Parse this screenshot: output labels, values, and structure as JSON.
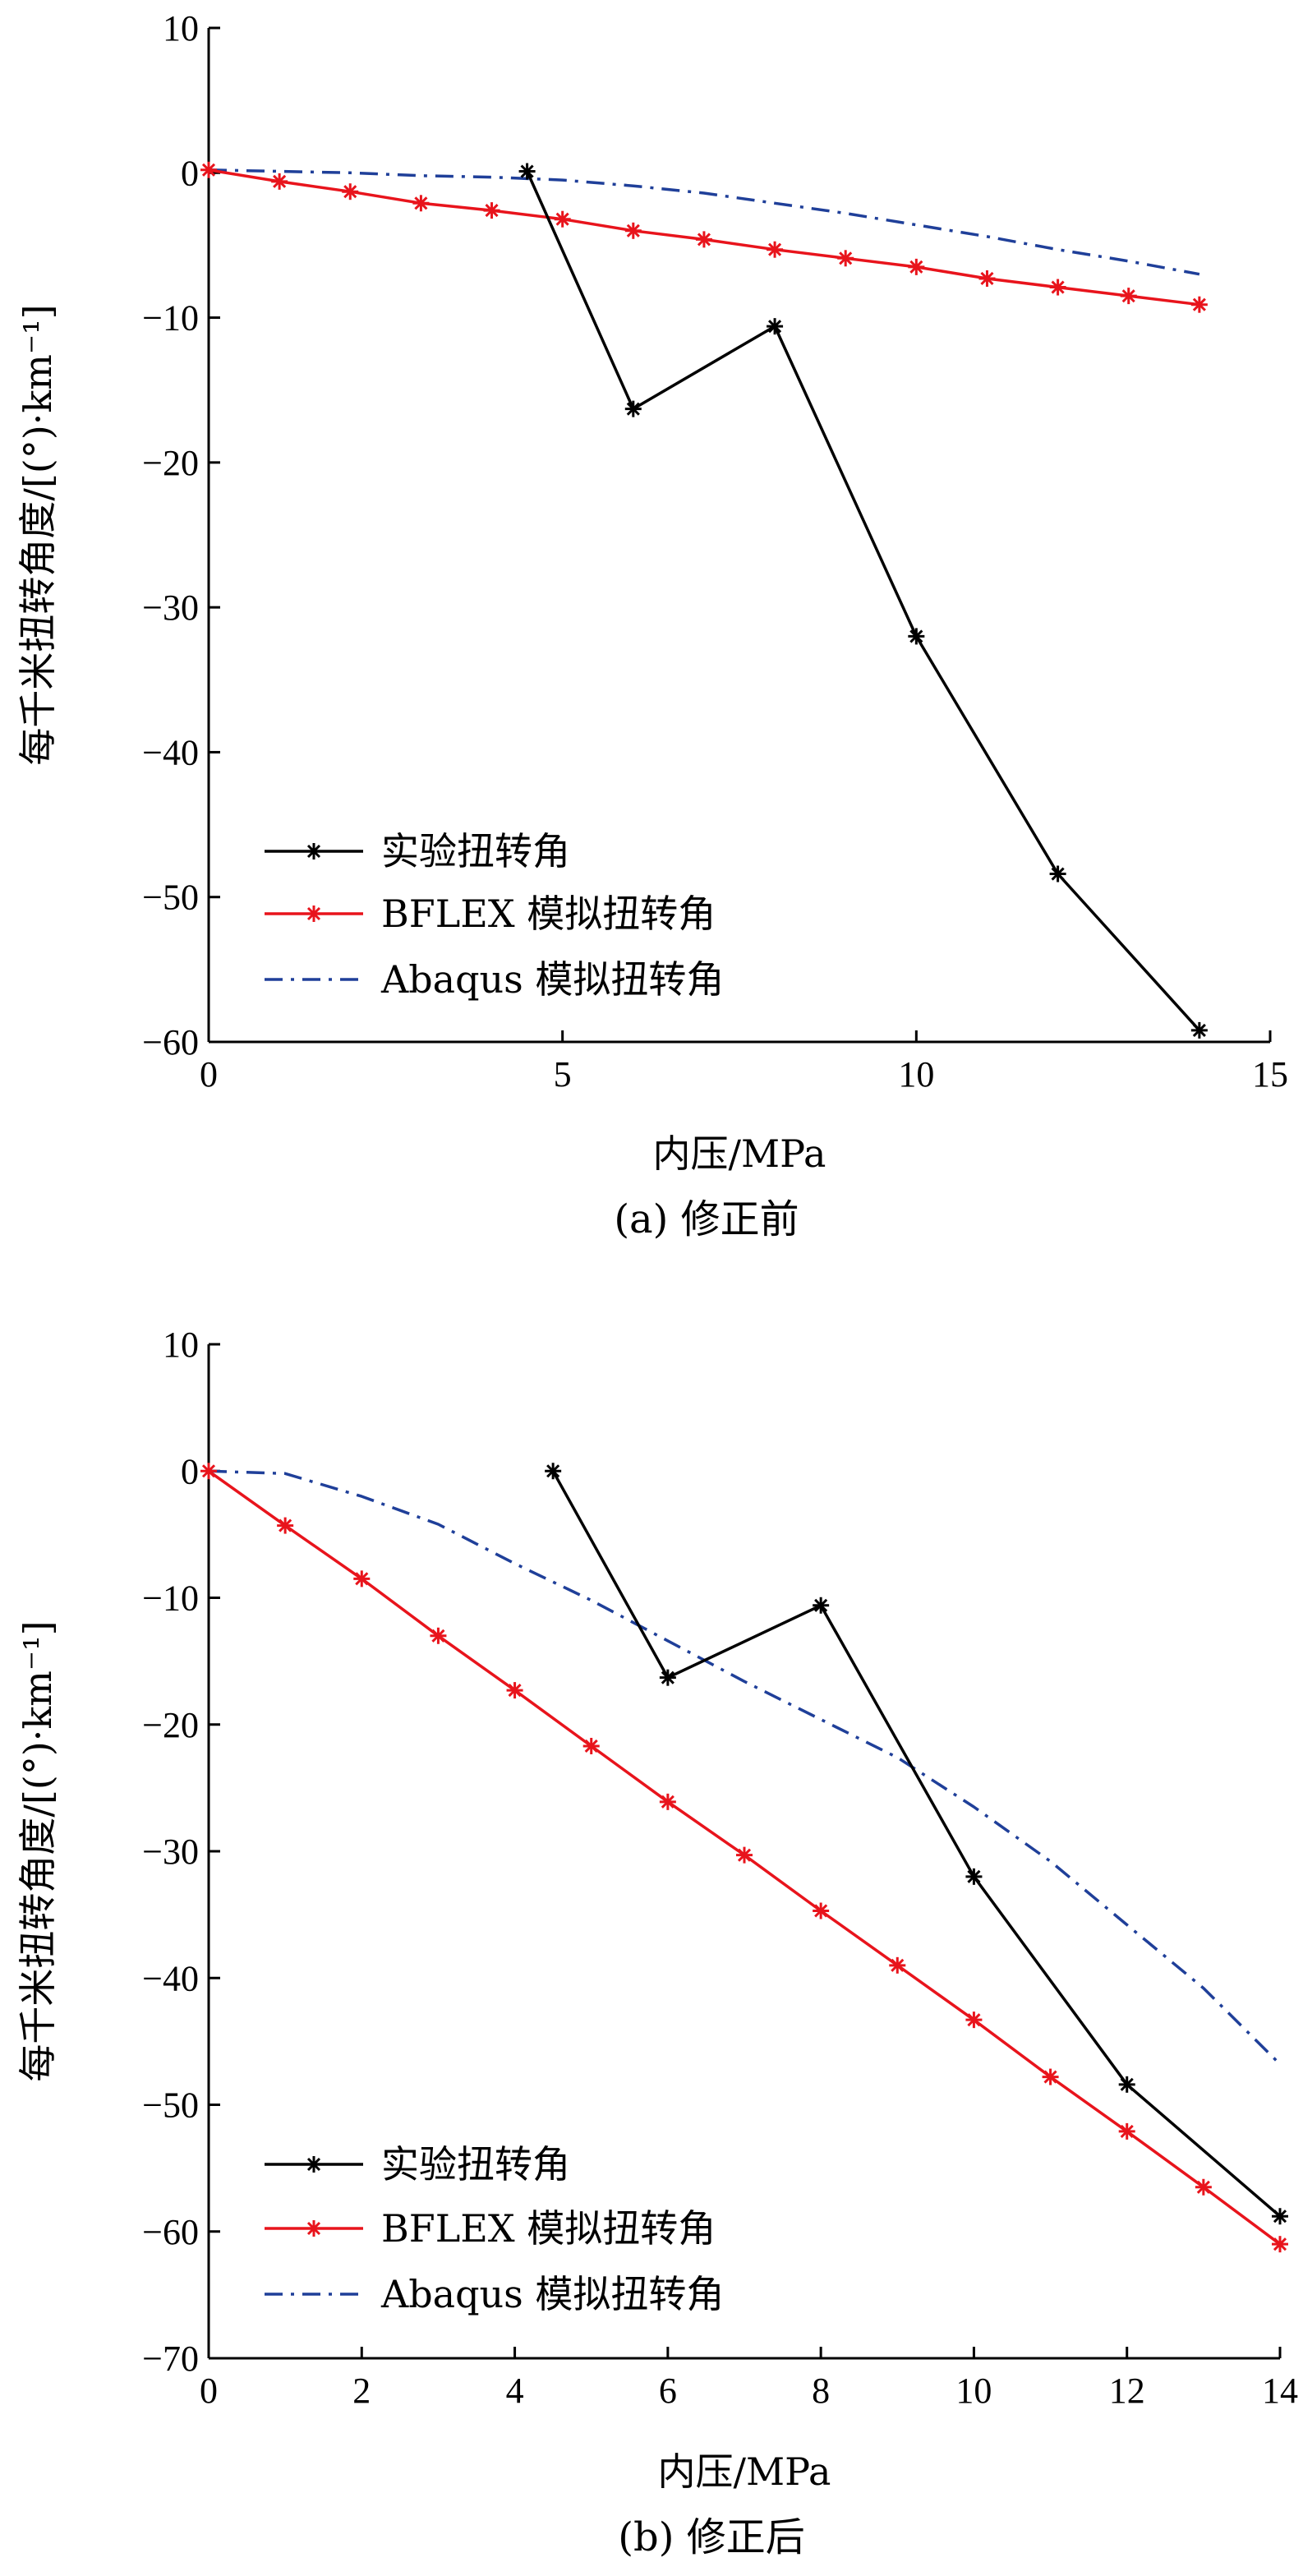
{
  "chart_data": [
    {
      "type": "line",
      "caption": "(a)  修正前",
      "xlabel": "内压/MPa",
      "ylabel": "每千米扭转角度/[(°)·km⁻¹]",
      "xlim": [
        0,
        15
      ],
      "ylim": [
        -60,
        10
      ],
      "xticks": [
        0,
        5,
        10,
        15
      ],
      "yticks": [
        10,
        0,
        -10,
        -20,
        -30,
        -40,
        -50,
        -60
      ],
      "xtick_labels": [
        "0",
        "5",
        "10",
        "15"
      ],
      "ytick_labels": [
        "10",
        "0",
        "−10",
        "−20",
        "−30",
        "−40",
        "−50",
        "−60"
      ],
      "legend_position": "bottom-left",
      "series": [
        {
          "name": "实验扭转角",
          "color": "#000000",
          "style": "solid-star",
          "x": [
            4.5,
            6,
            8,
            10,
            12,
            14
          ],
          "y": [
            0.1,
            -16.3,
            -10.6,
            -32,
            -48.4,
            -59.2
          ]
        },
        {
          "name": "BFLEX 模拟扭转角",
          "color": "#e8141c",
          "style": "solid-star",
          "x": [
            0,
            1,
            2,
            3,
            4,
            5,
            6,
            7,
            8,
            9,
            10,
            11,
            12,
            13,
            14
          ],
          "y": [
            0.2,
            -0.6,
            -1.3,
            -2.1,
            -2.6,
            -3.2,
            -4,
            -4.6,
            -5.3,
            -5.9,
            -6.5,
            -7.3,
            -7.9,
            -8.5,
            -9.1
          ]
        },
        {
          "name": "Abaqus 模拟扭转角",
          "color": "#1f3f99",
          "style": "dashdot",
          "x": [
            0,
            1,
            2,
            3,
            4,
            5,
            6,
            7,
            8,
            9,
            10,
            11,
            12,
            13,
            14
          ],
          "y": [
            0.2,
            0.1,
            0,
            -0.2,
            -0.3,
            -0.5,
            -0.9,
            -1.4,
            -2.1,
            -2.8,
            -3.6,
            -4.4,
            -5.3,
            -6.1,
            -7
          ]
        }
      ]
    },
    {
      "type": "line",
      "caption": "(b)  修正后",
      "xlabel": "内压/MPa",
      "ylabel": "每千米扭转角度/[(°)·km⁻¹]",
      "xlim": [
        0,
        14
      ],
      "ylim": [
        -70,
        10
      ],
      "xticks": [
        0,
        2,
        4,
        6,
        8,
        10,
        12,
        14
      ],
      "yticks": [
        10,
        0,
        -10,
        -20,
        -30,
        -40,
        -50,
        -60,
        -70
      ],
      "xtick_labels": [
        "0",
        "2",
        "4",
        "6",
        "8",
        "10",
        "12",
        "14"
      ],
      "ytick_labels": [
        "10",
        "0",
        "−10",
        "−20",
        "−30",
        "−40",
        "−50",
        "−60",
        "−70"
      ],
      "legend_position": "bottom-left",
      "series": [
        {
          "name": "实验扭转角",
          "color": "#000000",
          "style": "solid-star",
          "x": [
            4.5,
            6,
            8,
            10,
            12,
            14
          ],
          "y": [
            0,
            -16.3,
            -10.6,
            -32,
            -48.4,
            -58.8
          ]
        },
        {
          "name": "BFLEX 模拟扭转角",
          "color": "#e8141c",
          "style": "solid-star",
          "x": [
            0,
            1,
            2,
            3,
            4,
            5,
            6,
            7,
            8,
            9,
            10,
            11,
            12,
            13,
            14
          ],
          "y": [
            0,
            -4.3,
            -8.5,
            -13,
            -17.3,
            -21.7,
            -26.1,
            -30.3,
            -34.7,
            -39,
            -43.3,
            -47.8,
            -52.1,
            -56.5,
            -61
          ]
        },
        {
          "name": "Abaqus 模拟扭转角",
          "color": "#1f3f99",
          "style": "dashdot",
          "x": [
            0,
            1,
            2,
            3,
            4,
            5,
            6,
            7,
            8,
            9,
            10,
            11,
            12,
            13,
            14
          ],
          "y": [
            0,
            -0.2,
            -2,
            -4.2,
            -7.3,
            -10.2,
            -13.4,
            -16.6,
            -19.6,
            -22.6,
            -26.5,
            -30.8,
            -35.8,
            -40.8,
            -46.8
          ]
        }
      ]
    }
  ]
}
